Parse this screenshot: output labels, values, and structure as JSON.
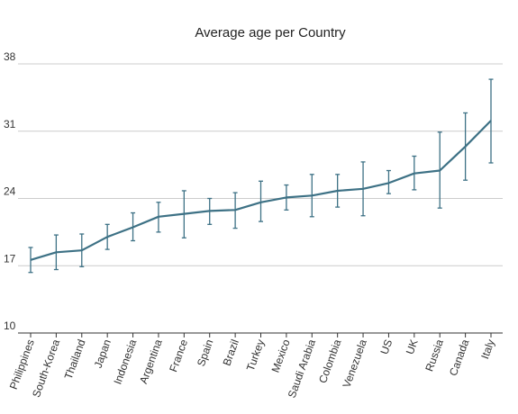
{
  "chart_data": {
    "type": "line",
    "title": "Average age per Country",
    "xlabel": "",
    "ylabel": "",
    "ylim": [
      10,
      38
    ],
    "yticks": [
      10,
      17,
      24,
      31,
      38
    ],
    "grid": true,
    "line_color": "#3d7185",
    "categories": [
      "Philippines",
      "South-Korea",
      "Thailand",
      "Japan",
      "Indonesia",
      "Argentina",
      "France",
      "Spain",
      "Brazil",
      "Turkey",
      "Mexico",
      "Saudi Arabia",
      "Colombia",
      "Venezuela",
      "US",
      "UK",
      "Russia",
      "Canada",
      "Italy"
    ],
    "series": [
      {
        "values": [
          17.6,
          18.4,
          18.6,
          20.0,
          21.0,
          22.1,
          22.4,
          22.7,
          22.8,
          23.6,
          24.1,
          24.3,
          24.8,
          25.0,
          25.6,
          26.6,
          26.9,
          29.4,
          32.1
        ],
        "error_low": [
          16.3,
          16.6,
          16.9,
          18.7,
          19.6,
          20.5,
          19.9,
          21.3,
          20.9,
          21.6,
          22.8,
          22.1,
          23.1,
          22.2,
          24.5,
          24.9,
          23.0,
          25.9,
          27.7
        ],
        "error_high": [
          18.9,
          20.2,
          20.3,
          21.3,
          22.5,
          23.6,
          24.8,
          24.0,
          24.6,
          25.8,
          25.4,
          26.5,
          26.5,
          27.8,
          26.9,
          28.4,
          30.9,
          32.9,
          36.4
        ]
      }
    ]
  }
}
